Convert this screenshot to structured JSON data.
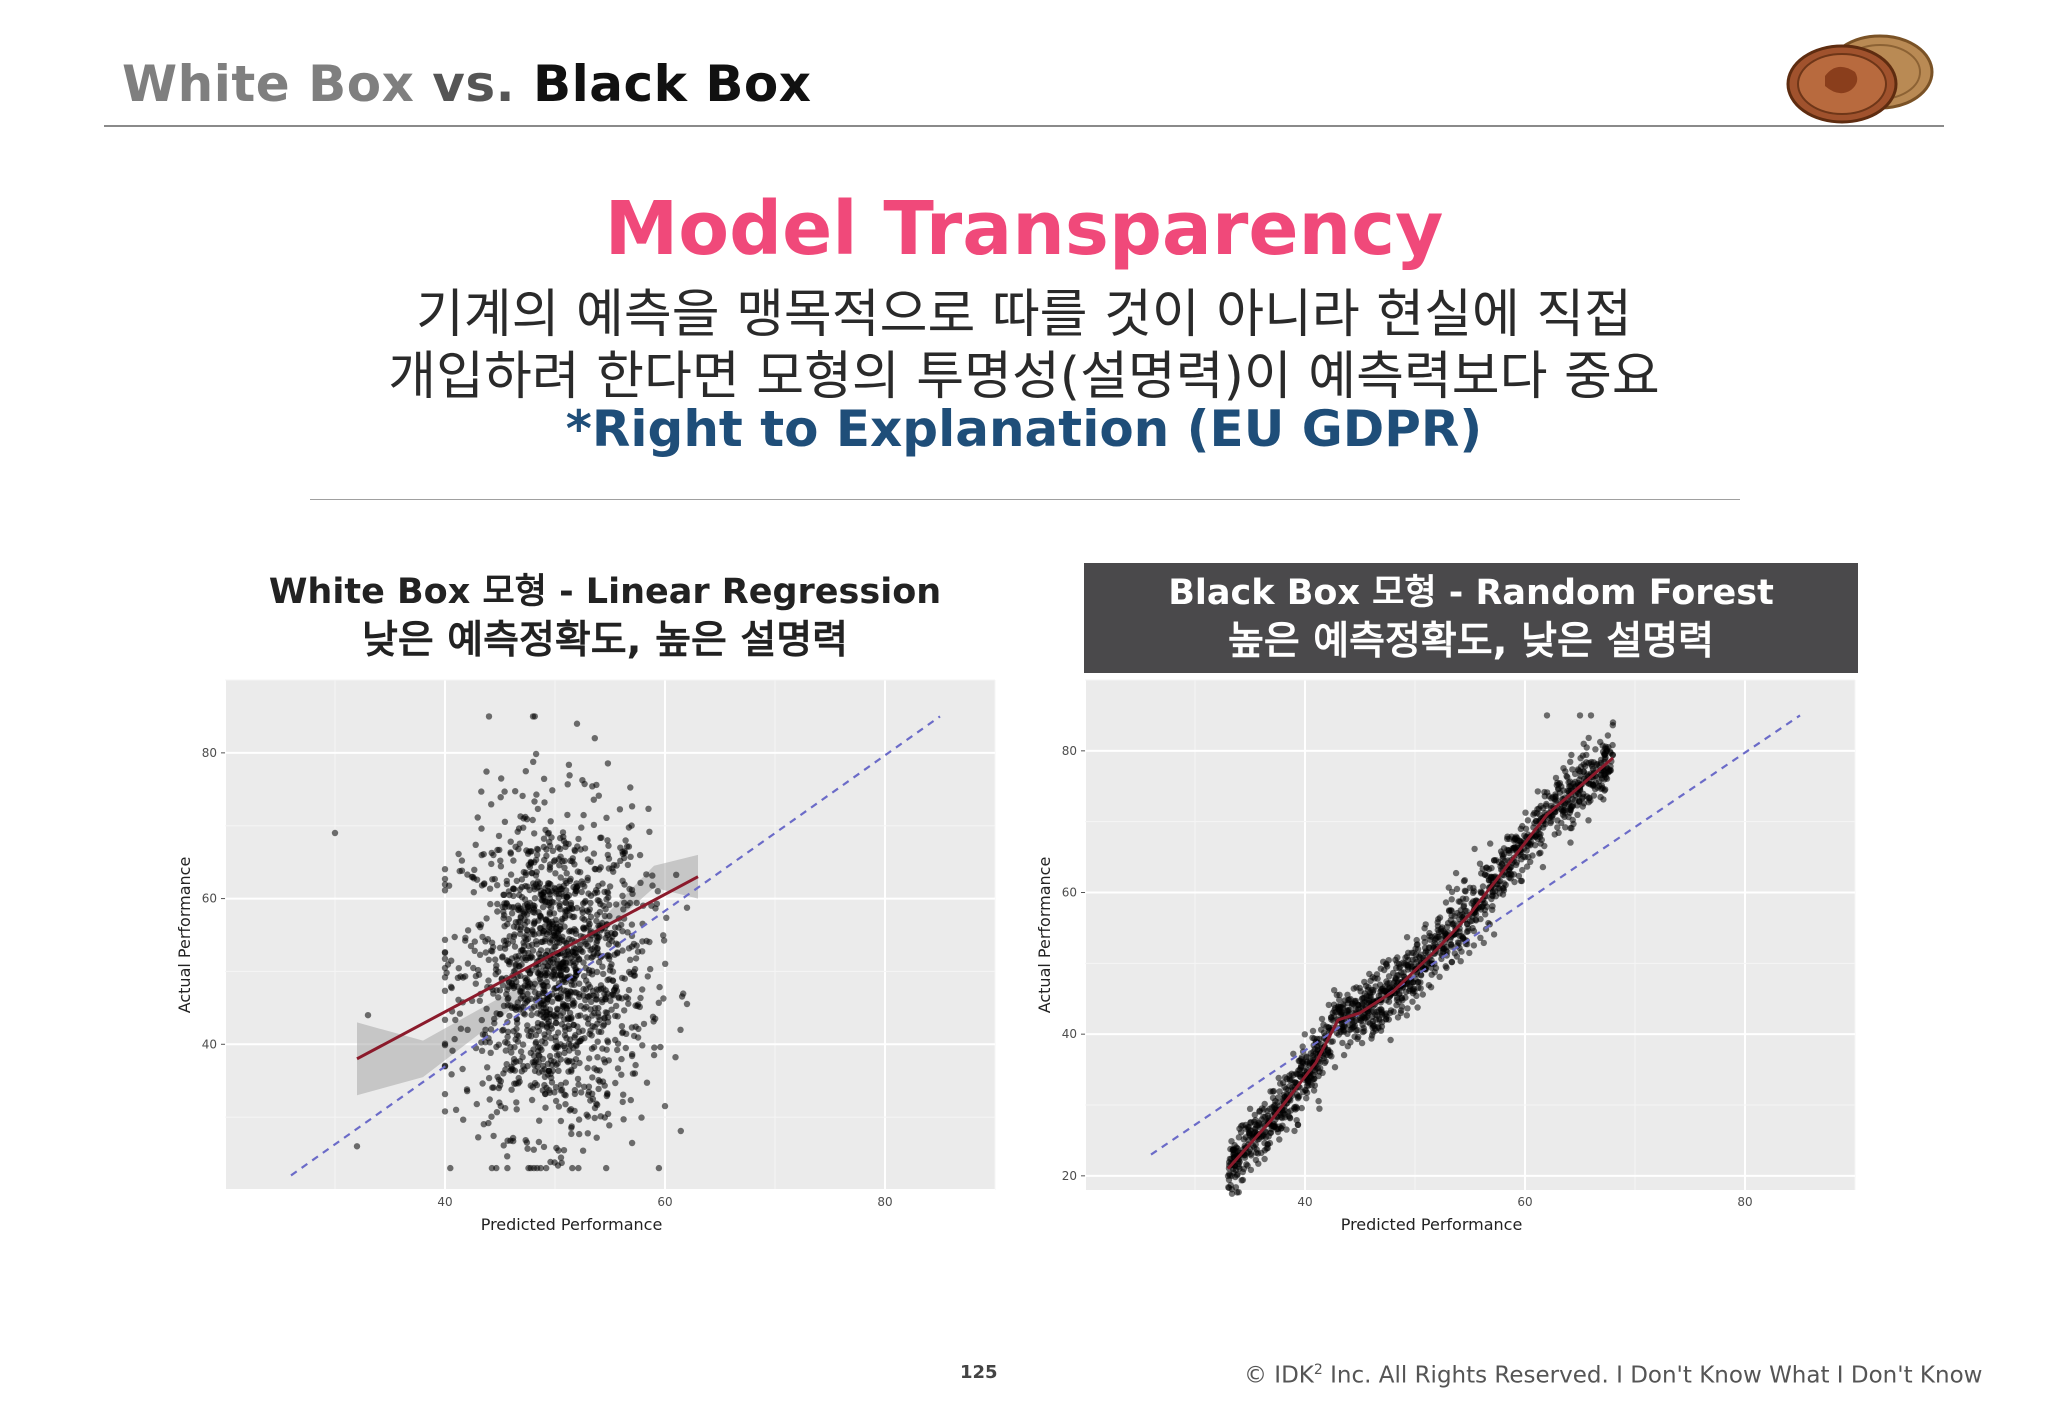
{
  "header": {
    "title_part1": "White Box",
    "title_part2": "vs.",
    "title_part3": "Black Box"
  },
  "main": {
    "heading": "Model Transparency",
    "line1": "기계의 예측을 맹목적으로 따를 것이 아니라 현실에 직접",
    "line2": "개입하려 한다면 모형의 투명성(설명력)이 예측력보다 중요",
    "note": "*Right to Explanation (EU GDPR)"
  },
  "left_caption": {
    "line1": "White Box 모형 - Linear Regression",
    "line2": "낮은 예측정확도, 높은 설명력"
  },
  "right_caption": {
    "line1": "Black Box 모형 - Random Forest",
    "line2": "높은 예측정확도, 낮은 설명력"
  },
  "colors": {
    "heading": "#f0497a",
    "note": "#1f4e79",
    "caption_box": "#4a494b",
    "fit_line": "#8b1a2b",
    "identity_line": "#6b6bc8"
  },
  "chart_data": [
    {
      "type": "scatter",
      "title": "",
      "xlabel": "Predicted Performance",
      "ylabel": "Actual Performance",
      "xlim": [
        20,
        90
      ],
      "ylim": [
        20,
        90
      ],
      "xticks": [
        "40",
        "60",
        "80"
      ],
      "yticks": [
        "40",
        "60",
        "80"
      ],
      "grid": true,
      "identity_line": {
        "style": "dashed",
        "from": [
          26,
          22
        ],
        "to": [
          85,
          85
        ]
      },
      "fit_line": {
        "type": "linear",
        "from": [
          32,
          38
        ],
        "to": [
          63,
          63
        ],
        "confidence_band": true
      },
      "point_cloud": {
        "x_range": [
          40,
          62
        ],
        "y_range": [
          23,
          85
        ],
        "center": [
          50,
          50
        ],
        "count_approx": 1500
      },
      "outliers": [
        {
          "x": 30,
          "y": 69
        },
        {
          "x": 33,
          "y": 44
        },
        {
          "x": 32,
          "y": 26
        },
        {
          "x": 44,
          "y": 85
        },
        {
          "x": 48,
          "y": 85
        },
        {
          "x": 52,
          "y": 84
        }
      ]
    },
    {
      "type": "scatter",
      "title": "",
      "xlabel": "Predicted Performance",
      "ylabel": "Actual Performance",
      "xlim": [
        20,
        90
      ],
      "ylim": [
        18,
        90
      ],
      "xticks": [
        "40",
        "60",
        "80"
      ],
      "yticks": [
        "20",
        "40",
        "60",
        "80"
      ],
      "grid": true,
      "identity_line": {
        "style": "dashed",
        "from": [
          26,
          23
        ],
        "to": [
          85,
          85
        ]
      },
      "fit_line": {
        "type": "smooth",
        "points": [
          [
            33,
            21
          ],
          [
            37,
            28
          ],
          [
            41,
            36
          ],
          [
            43,
            42
          ],
          [
            45,
            43
          ],
          [
            48,
            46
          ],
          [
            52,
            52
          ],
          [
            55,
            57
          ],
          [
            58,
            63
          ],
          [
            62,
            71
          ],
          [
            68,
            79
          ]
        ]
      },
      "point_cloud": {
        "x_range": [
          33,
          68
        ],
        "y_range": [
          22,
          85
        ],
        "trend": "steep_monotonic",
        "count_approx": 1500
      },
      "outliers": [
        {
          "x": 62,
          "y": 85
        },
        {
          "x": 65,
          "y": 85
        },
        {
          "x": 66,
          "y": 85
        },
        {
          "x": 68,
          "y": 84
        }
      ]
    }
  ],
  "footer": {
    "page_number": "125",
    "copyright_a": "© IDK",
    "copyright_sup": "2",
    "copyright_b": " Inc. All Rights Reserved.  I Don't Know What I Don't Know"
  }
}
